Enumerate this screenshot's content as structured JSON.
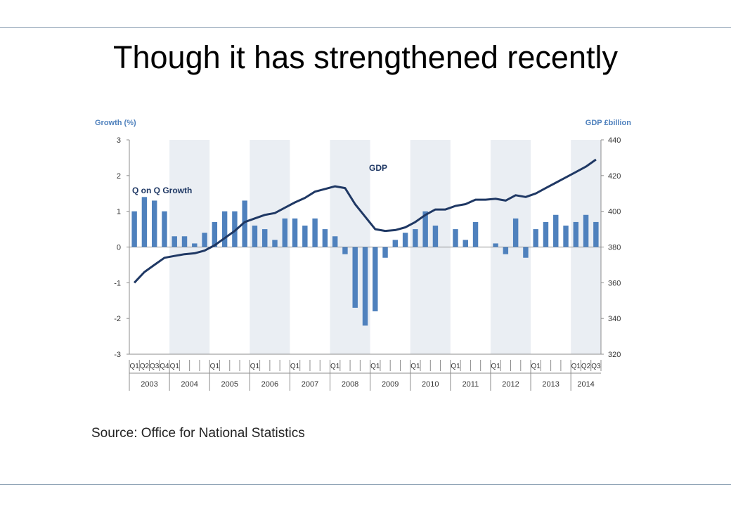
{
  "slide": {
    "title": "Though it has strengthened recently",
    "source": "Source: Office for National Statistics"
  },
  "chart_data": {
    "type": "bar+line",
    "left_axis_title": "Growth (%)",
    "right_axis_title": "GDP £billion",
    "left_ylim": [
      -3,
      3
    ],
    "left_ticks": [
      "3",
      "2",
      "1",
      "0",
      "-1",
      "-2",
      "-3"
    ],
    "right_ylim": [
      320,
      440
    ],
    "right_ticks": [
      "440",
      "420",
      "400",
      "380",
      "360",
      "340",
      "320"
    ],
    "grid": false,
    "shaded_bands": "alternate years",
    "years": [
      "2003",
      "2004",
      "2005",
      "2006",
      "2007",
      "2008",
      "2009",
      "2010",
      "2011",
      "2012",
      "2013",
      "2014"
    ],
    "quarter_labels": [
      "Q1",
      "Q2",
      "Q3",
      "Q4",
      "Q1",
      "",
      "",
      "",
      "Q1",
      "",
      "",
      "",
      "Q1",
      "",
      "",
      "",
      "Q1",
      "",
      "",
      "",
      "Q1",
      "",
      "",
      "",
      "Q1",
      "",
      "",
      "",
      "Q1",
      "",
      "",
      "",
      "Q1",
      "",
      "",
      "",
      "Q1",
      "",
      "",
      "",
      "Q1",
      "",
      "",
      "",
      "Q1",
      "Q2",
      "Q3"
    ],
    "series": [
      {
        "name": "Q on Q Growth",
        "kind": "bar",
        "axis": "left",
        "color": "#4f81bd",
        "values": [
          1.0,
          1.4,
          1.3,
          1.0,
          0.3,
          0.3,
          0.1,
          0.4,
          0.7,
          1.0,
          1.0,
          1.3,
          0.6,
          0.5,
          0.2,
          0.8,
          0.8,
          0.6,
          0.8,
          0.5,
          0.3,
          -0.2,
          -1.7,
          -2.2,
          -1.8,
          -0.3,
          0.2,
          0.4,
          0.5,
          1.0,
          0.6,
          0.0,
          0.5,
          0.2,
          0.7,
          0.0,
          0.1,
          -0.2,
          0.8,
          -0.3,
          0.5,
          0.7,
          0.9,
          0.6,
          0.7,
          0.9,
          0.7
        ]
      },
      {
        "name": "GDP",
        "kind": "line",
        "axis": "right",
        "color": "#1f3864",
        "values": [
          360,
          366,
          370,
          374,
          375,
          376,
          376.5,
          378,
          381,
          385,
          389,
          394,
          396,
          398,
          399,
          402,
          405,
          407.5,
          411,
          412.5,
          414,
          413,
          404,
          397,
          390,
          389,
          389.5,
          391,
          394,
          398,
          401,
          401,
          403,
          404,
          406.5,
          406.5,
          407,
          406,
          409,
          408,
          410,
          413,
          416,
          419,
          422,
          425,
          429
        ]
      }
    ]
  }
}
